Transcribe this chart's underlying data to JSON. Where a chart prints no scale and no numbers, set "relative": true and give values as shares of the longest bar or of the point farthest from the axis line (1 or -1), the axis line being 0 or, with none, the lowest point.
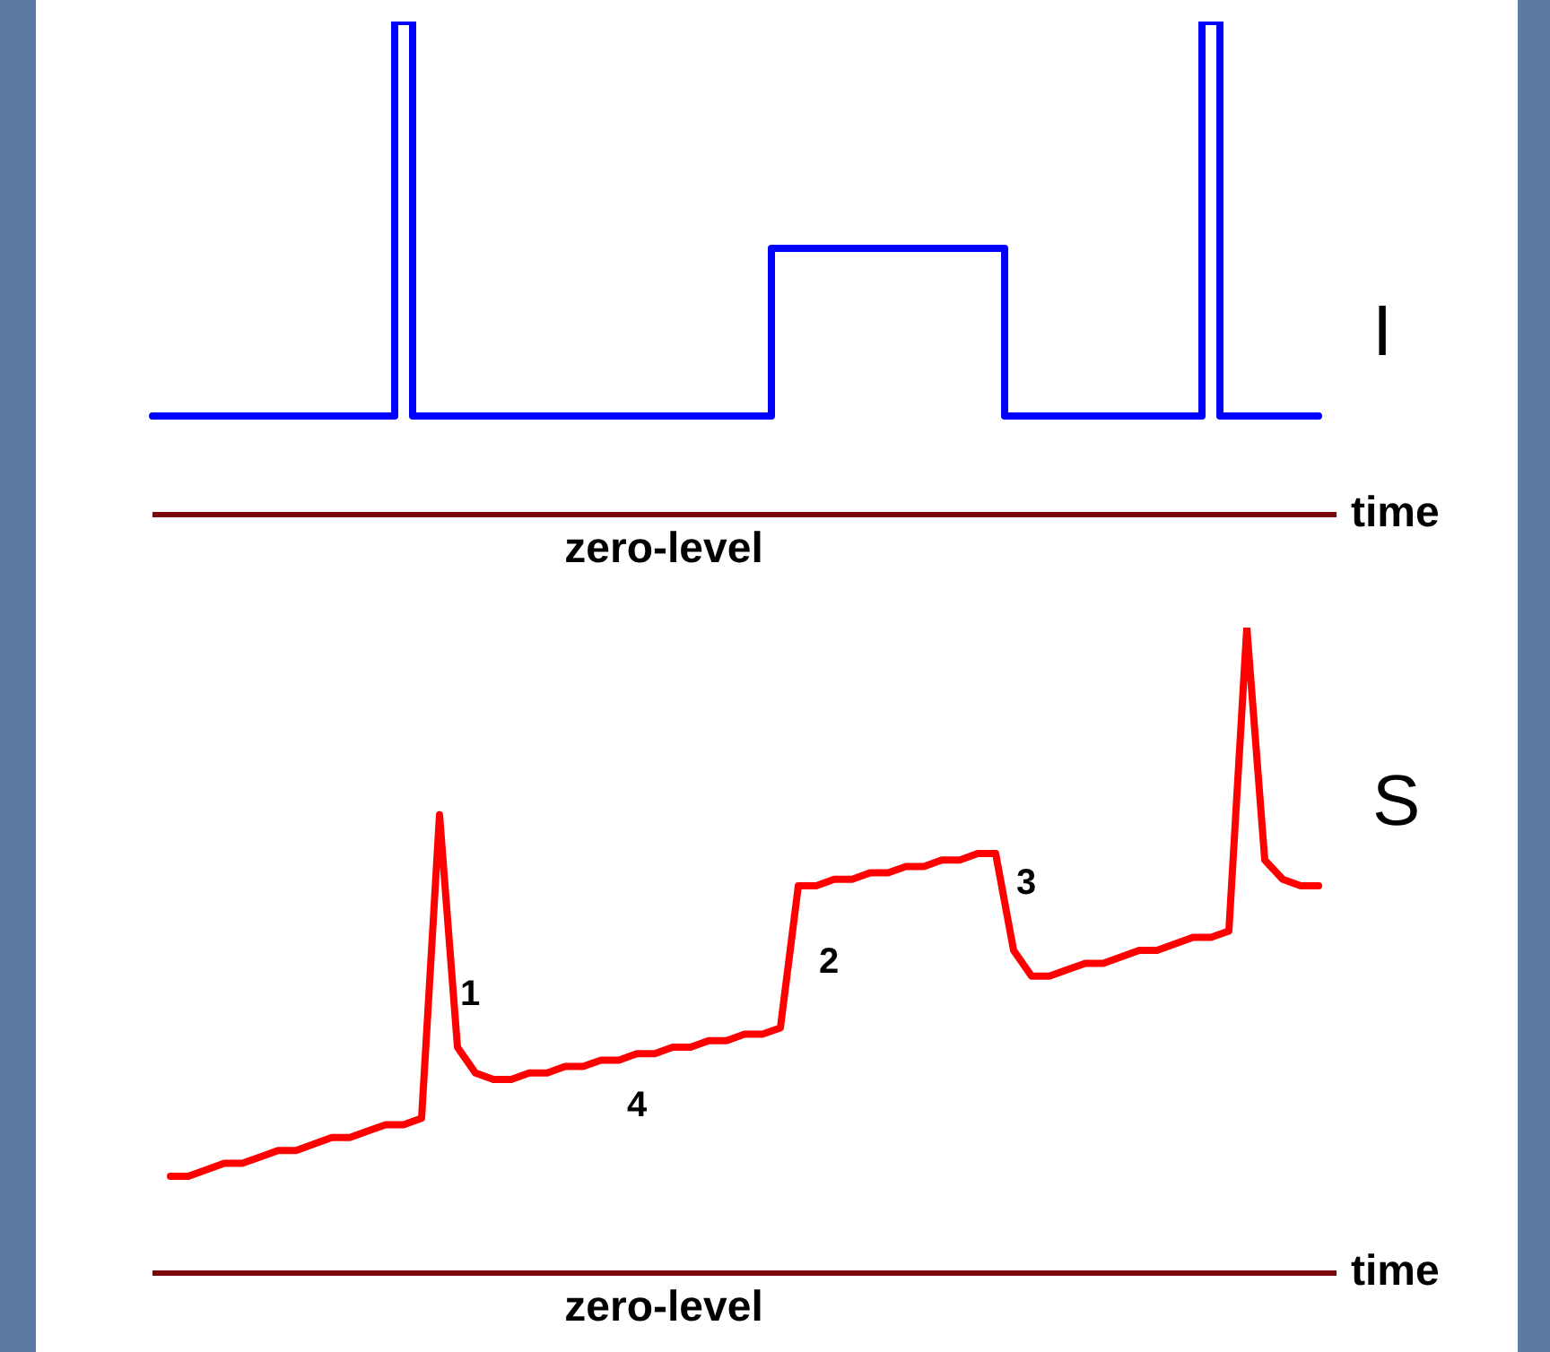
{
  "chart_data": [
    {
      "type": "step",
      "relative": true,
      "xlabel": "time",
      "legend": false,
      "marker": "none",
      "line_style": "solid",
      "annotations": [
        "zero-level"
      ],
      "categories": [
        null,
        null,
        null,
        null,
        null,
        null,
        null,
        null,
        null,
        null,
        null,
        null,
        null,
        null,
        null,
        null,
        null,
        null,
        null,
        null,
        null,
        null,
        null,
        null,
        null,
        null,
        null,
        null,
        null,
        null,
        null,
        null,
        null,
        null,
        null,
        null,
        null,
        null,
        null,
        null,
        null,
        null,
        null,
        null,
        null,
        null,
        null,
        null,
        null,
        null,
        null,
        null,
        null,
        null,
        null,
        null,
        null,
        null,
        null,
        null,
        null,
        null,
        null,
        null,
        null,
        null
      ],
      "series": [
        {
          "name": "I",
          "color": "#0000ff",
          "values": [
            0.2,
            0.2,
            0.2,
            0.2,
            0.2,
            0.2,
            0.2,
            0.2,
            0.2,
            0.2,
            0.2,
            0.2,
            0.2,
            0.2,
            1,
            0.2,
            0.2,
            0.2,
            0.2,
            0.2,
            0.2,
            0.2,
            0.2,
            0.2,
            0.2,
            0.2,
            0.2,
            0.2,
            0.2,
            0.2,
            0.2,
            0.2,
            0.2,
            0.2,
            0.2,
            0.54,
            0.54,
            0.54,
            0.54,
            0.54,
            0.54,
            0.54,
            0.54,
            0.54,
            0.54,
            0.54,
            0.54,
            0.54,
            0.2,
            0.2,
            0.2,
            0.2,
            0.2,
            0.2,
            0.2,
            0.2,
            0.2,
            0.2,
            0.2,
            1,
            0.2,
            0.2,
            0.2,
            0.2,
            0.2,
            0.2
          ]
        }
      ]
    },
    {
      "type": "line",
      "relative": true,
      "xlabel": "time",
      "legend": false,
      "marker": "none",
      "line_style": "solid",
      "annotations": [
        "zero-level",
        "1",
        "2",
        "3",
        "4"
      ],
      "categories": [
        null,
        null,
        null,
        null,
        null,
        null,
        null,
        null,
        null,
        null,
        null,
        null,
        null,
        null,
        null,
        null,
        null,
        null,
        null,
        null,
        null,
        null,
        null,
        null,
        null,
        null,
        null,
        null,
        null,
        null,
        null,
        null,
        null,
        null,
        null,
        null,
        null,
        null,
        null,
        null,
        null,
        null,
        null,
        null,
        null,
        null,
        null,
        null,
        null,
        null,
        null,
        null,
        null,
        null,
        null,
        null,
        null,
        null,
        null,
        null,
        null,
        null,
        null,
        null,
        null,
        null
      ],
      "series": [
        {
          "name": "S",
          "color": "#ff0000",
          "values": [
            null,
            0.15,
            0.15,
            0.16,
            0.17,
            0.17,
            0.18,
            0.19,
            0.19,
            0.2,
            0.21,
            0.21,
            0.22,
            0.23,
            0.23,
            0.24,
            0.71,
            0.35,
            0.31,
            0.3,
            0.3,
            0.31,
            0.31,
            0.32,
            0.32,
            0.33,
            0.33,
            0.34,
            0.34,
            0.35,
            0.35,
            0.36,
            0.36,
            0.37,
            0.37,
            0.38,
            0.6,
            0.6,
            0.61,
            0.61,
            0.62,
            0.62,
            0.63,
            0.63,
            0.64,
            0.64,
            0.65,
            0.65,
            0.5,
            0.46,
            0.46,
            0.47,
            0.48,
            0.48,
            0.49,
            0.5,
            0.5,
            0.51,
            0.52,
            0.52,
            0.53,
            1.0,
            0.64,
            0.61,
            0.6,
            0.6
          ]
        }
      ]
    }
  ]
}
